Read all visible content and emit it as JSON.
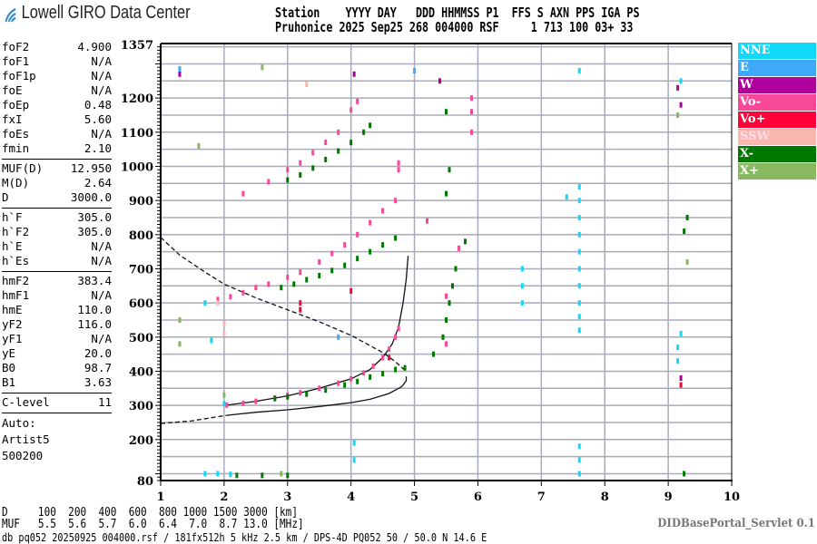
{
  "logo": {
    "text": "Lowell GIRO Data Center",
    "icon": "wifi-arcs-icon",
    "color": "#3a8fc8"
  },
  "header": {
    "line1": "Station    YYYY DAY   DDD HHMMSS P1  FFS S AXN PPS IGA PS",
    "line2": "Pruhonice 2025 Sep25 268 004000 RSF     1 713 100 03+ 33"
  },
  "params": {
    "group1": [
      [
        "foF2",
        "4.900"
      ],
      [
        "foF1",
        "N/A"
      ],
      [
        "foF1p",
        "N/A"
      ],
      [
        "foE",
        "N/A"
      ],
      [
        "foEp",
        "0.48"
      ],
      [
        "fxI",
        "5.60"
      ],
      [
        "foEs",
        "N/A"
      ],
      [
        "fmin",
        "2.10"
      ]
    ],
    "group2": [
      [
        "MUF(D)",
        "12.950"
      ],
      [
        "M(D)",
        "2.64"
      ],
      [
        "D",
        "3000.0"
      ]
    ],
    "group3": [
      [
        "h`F",
        "305.0"
      ],
      [
        "h`F2",
        "305.0"
      ],
      [
        "h`E",
        "N/A"
      ],
      [
        "h`Es",
        "N/A"
      ]
    ],
    "group4": [
      [
        "hmF2",
        "383.4"
      ],
      [
        "hmF1",
        "N/A"
      ],
      [
        "hmE",
        "110.0"
      ],
      [
        "yF2",
        "116.0"
      ],
      [
        "yF1",
        "N/A"
      ],
      [
        "yE",
        "20.0"
      ],
      [
        "B0",
        "98.7"
      ],
      [
        "B1",
        "3.63"
      ]
    ],
    "group5": [
      [
        "C-level",
        "11"
      ]
    ],
    "auto": [
      "Auto:",
      "Artist5",
      "500200"
    ]
  },
  "legend": [
    {
      "label": "NNE",
      "color": "#10d8f8"
    },
    {
      "label": "E",
      "color": "#40a8f8"
    },
    {
      "label": "W",
      "color": "#b0009c"
    },
    {
      "label": "Vo-",
      "color": "#f84898"
    },
    {
      "label": "Vo+",
      "color": "#ff0038"
    },
    {
      "label": "SSW",
      "color": "#f8b8b0"
    },
    {
      "label": "X-",
      "color": "#007800"
    },
    {
      "label": "X+",
      "color": "#88b860"
    }
  ],
  "bottom": {
    "d_row": "D     100  200  400  600  800 1000 1500 3000 [km]",
    "muf_row": "MUF   5.5  5.6  5.7  6.0  6.4  7.0  8.7 13.0 [MHz]",
    "footer": "db pq052 20250925 004000.rsf / 181fx512h 5 kHz 2.5 km / DPS-4D PQ052 50 / 50.0 N 14.6 E",
    "servlet": "DIDBasePortal_Servlet 0.1"
  },
  "chart_data": {
    "type": "scatter",
    "xlim": [
      1,
      10
    ],
    "ylim": [
      80,
      1357
    ],
    "x_ticks": [
      "1",
      "2",
      "3",
      "4",
      "5",
      "6",
      "7",
      "8",
      "9",
      "10"
    ],
    "y_ticks": [
      "80",
      "200",
      "300",
      "400",
      "500",
      "600",
      "700",
      "800",
      "900",
      "1000",
      "1100",
      "1200",
      "1357"
    ],
    "grid": true,
    "legend_placement": "right",
    "series": [
      {
        "name": "Vo-",
        "color": "#f84898",
        "points": [
          [
            2.04,
            301
          ],
          [
            2.3,
            306
          ],
          [
            2.5,
            312
          ],
          [
            2.8,
            322
          ],
          [
            3.0,
            330
          ],
          [
            3.2,
            337
          ],
          [
            3.5,
            350
          ],
          [
            3.8,
            365
          ],
          [
            4.0,
            378
          ],
          [
            4.2,
            395
          ],
          [
            4.35,
            415
          ],
          [
            4.5,
            440
          ],
          [
            4.6,
            465
          ],
          [
            4.7,
            500
          ],
          [
            4.75,
            525
          ],
          [
            1.9,
            610
          ],
          [
            2.1,
            618
          ],
          [
            2.3,
            630
          ],
          [
            2.5,
            645
          ],
          [
            2.7,
            655
          ],
          [
            3.0,
            675
          ],
          [
            3.2,
            690
          ],
          [
            3.5,
            720
          ],
          [
            3.7,
            745
          ],
          [
            3.9,
            770
          ],
          [
            4.1,
            800
          ],
          [
            4.3,
            835
          ],
          [
            4.5,
            870
          ],
          [
            4.7,
            900
          ],
          [
            2.3,
            920
          ],
          [
            2.7,
            955
          ],
          [
            3.0,
            990
          ],
          [
            3.2,
            1010
          ],
          [
            3.4,
            1040
          ],
          [
            3.6,
            1070
          ],
          [
            3.8,
            1100
          ],
          [
            4.0,
            1165
          ],
          [
            4.1,
            1190
          ],
          [
            4.75,
            990
          ],
          [
            4.75,
            1010
          ],
          [
            5.9,
            1100
          ],
          [
            5.9,
            1160
          ],
          [
            5.9,
            1200
          ],
          [
            5.2,
            840
          ],
          [
            5.5,
            480
          ],
          [
            5.5,
            620
          ],
          [
            5.7,
            760
          ]
        ]
      },
      {
        "name": "X-",
        "color": "#007800",
        "points": [
          [
            2.8,
            320
          ],
          [
            3.0,
            325
          ],
          [
            3.3,
            333
          ],
          [
            3.6,
            345
          ],
          [
            3.9,
            360
          ],
          [
            4.1,
            370
          ],
          [
            4.3,
            383
          ],
          [
            4.5,
            393
          ],
          [
            4.7,
            405
          ],
          [
            4.85,
            410
          ],
          [
            2.9,
            645
          ],
          [
            3.1,
            655
          ],
          [
            3.3,
            668
          ],
          [
            3.5,
            680
          ],
          [
            3.7,
            695
          ],
          [
            3.9,
            710
          ],
          [
            4.1,
            730
          ],
          [
            4.3,
            750
          ],
          [
            4.5,
            770
          ],
          [
            4.7,
            790
          ],
          [
            3.0,
            960
          ],
          [
            3.2,
            975
          ],
          [
            3.4,
            995
          ],
          [
            3.6,
            1020
          ],
          [
            3.8,
            1045
          ],
          [
            4.0,
            1070
          ],
          [
            4.2,
            1100
          ],
          [
            4.3,
            1120
          ],
          [
            5.3,
            450
          ],
          [
            5.45,
            500
          ],
          [
            5.5,
            550
          ],
          [
            5.55,
            600
          ],
          [
            5.6,
            650
          ],
          [
            5.65,
            700
          ],
          [
            5.8,
            780
          ],
          [
            5.5,
            920
          ],
          [
            5.55,
            990
          ],
          [
            5.5,
            1160
          ],
          [
            9.25,
            810
          ],
          [
            9.3,
            850
          ],
          [
            9.25,
            100
          ],
          [
            2.2,
            95
          ],
          [
            2.6,
            95
          ],
          [
            3.0,
            95
          ]
        ]
      },
      {
        "name": "NNE",
        "color": "#10d8f8",
        "points": [
          [
            7.6,
            100
          ],
          [
            7.6,
            140
          ],
          [
            7.6,
            180
          ],
          [
            7.6,
            520
          ],
          [
            7.6,
            560
          ],
          [
            7.6,
            600
          ],
          [
            7.6,
            650
          ],
          [
            7.6,
            700
          ],
          [
            7.6,
            750
          ],
          [
            7.6,
            800
          ],
          [
            7.6,
            850
          ],
          [
            7.6,
            900
          ],
          [
            7.6,
            940
          ],
          [
            6.7,
            600
          ],
          [
            6.7,
            650
          ],
          [
            6.7,
            700
          ],
          [
            9.15,
            430
          ],
          [
            9.2,
            510
          ],
          [
            9.15,
            470
          ],
          [
            1.3,
            1280
          ],
          [
            1.7,
            100
          ],
          [
            1.9,
            100
          ],
          [
            2.1,
            98
          ],
          [
            1.8,
            490
          ],
          [
            1.7,
            600
          ],
          [
            2.0,
            305
          ],
          [
            4.05,
            190
          ],
          [
            4.05,
            140
          ],
          [
            7.6,
            1280
          ],
          [
            7.4,
            910
          ],
          [
            9.2,
            1250
          ]
        ]
      },
      {
        "name": "W",
        "color": "#b0009c",
        "points": [
          [
            1.3,
            1270
          ],
          [
            9.15,
            1230
          ],
          [
            9.2,
            1180
          ],
          [
            4.05,
            1270
          ],
          [
            9.2,
            380
          ],
          [
            5.4,
            1250
          ]
        ]
      },
      {
        "name": "E",
        "color": "#40a8f8",
        "points": [
          [
            1.3,
            1285
          ],
          [
            5.0,
            1280
          ],
          [
            3.8,
            500
          ]
        ]
      },
      {
        "name": "Vo+",
        "color": "#ff0038",
        "points": [
          [
            4.0,
            635
          ],
          [
            3.2,
            580
          ],
          [
            3.2,
            600
          ],
          [
            4.6,
            440
          ],
          [
            9.2,
            360
          ]
        ]
      },
      {
        "name": "SSW",
        "color": "#f8b8b0",
        "points": [
          [
            2.0,
            540
          ],
          [
            2.0,
            510
          ],
          [
            1.9,
            600
          ],
          [
            3.3,
            1240
          ]
        ]
      },
      {
        "name": "X+",
        "color": "#88b860",
        "points": [
          [
            2.6,
            1290
          ],
          [
            1.6,
            1060
          ],
          [
            2.0,
            330
          ],
          [
            9.3,
            720
          ],
          [
            2.9,
            100
          ],
          [
            9.15,
            1150
          ],
          [
            1.3,
            550
          ],
          [
            1.3,
            480
          ]
        ]
      }
    ],
    "curves": [
      {
        "style": "dashed",
        "points": [
          [
            1.0,
            792
          ],
          [
            1.3,
            740
          ],
          [
            1.7,
            690
          ],
          [
            2.0,
            655
          ],
          [
            2.5,
            615
          ],
          [
            3.0,
            580
          ],
          [
            3.5,
            545
          ],
          [
            4.0,
            505
          ],
          [
            4.3,
            475
          ],
          [
            4.5,
            455
          ],
          [
            4.7,
            428
          ],
          [
            4.87,
            399
          ]
        ]
      },
      {
        "style": "dashed",
        "points": [
          [
            1.0,
            247
          ],
          [
            1.5,
            255
          ],
          [
            2.04,
            271
          ]
        ]
      },
      {
        "style": "solid",
        "points": [
          [
            2.04,
            271
          ],
          [
            2.5,
            280
          ],
          [
            3.0,
            287
          ],
          [
            3.5,
            297
          ],
          [
            4.0,
            308
          ],
          [
            4.3,
            318
          ],
          [
            4.6,
            335
          ],
          [
            4.8,
            355
          ],
          [
            4.87,
            372
          ],
          [
            4.87,
            385
          ]
        ]
      },
      {
        "style": "solid",
        "points": [
          [
            2.04,
            301
          ],
          [
            2.5,
            312
          ],
          [
            3.0,
            328
          ],
          [
            3.5,
            350
          ],
          [
            4.0,
            378
          ],
          [
            4.3,
            405
          ],
          [
            4.5,
            440
          ],
          [
            4.65,
            480
          ],
          [
            4.75,
            530
          ],
          [
            4.82,
            600
          ],
          [
            4.87,
            670
          ],
          [
            4.9,
            738
          ]
        ]
      }
    ]
  }
}
